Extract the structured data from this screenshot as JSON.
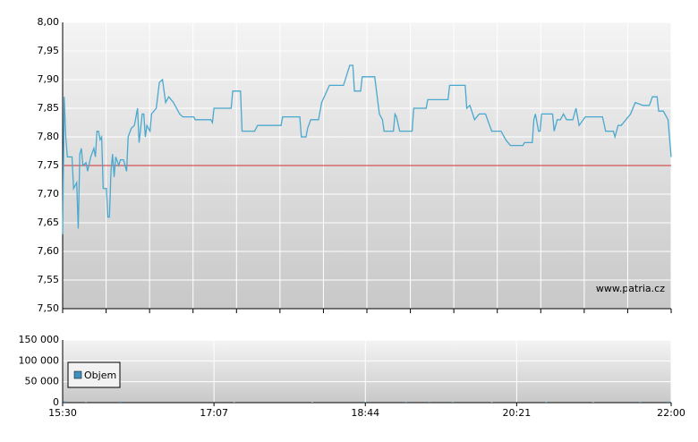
{
  "chart_data": [
    {
      "type": "line",
      "watermark": "www.patria.cz",
      "x": [
        "15:30",
        "15:31",
        "15:32",
        "15:33",
        "15:36",
        "15:37",
        "15:39",
        "15:40",
        "15:41",
        "15:42",
        "15:43",
        "15:45",
        "15:46",
        "15:48",
        "15:50",
        "15:51",
        "15:52",
        "15:53",
        "15:54",
        "15:55",
        "15:56",
        "15:58",
        "15:59",
        "16:00",
        "16:01",
        "16:02",
        "16:03",
        "16:04",
        "16:06",
        "16:07",
        "16:09",
        "16:11",
        "16:12",
        "16:14",
        "16:16",
        "16:18",
        "16:19",
        "16:21",
        "16:22",
        "16:23",
        "16:24",
        "16:26",
        "16:27",
        "16:30",
        "16:32",
        "16:34",
        "16:36",
        "16:38",
        "16:41",
        "16:45",
        "16:47",
        "16:54",
        "16:55",
        "17:05",
        "17:06",
        "17:07",
        "17:18",
        "17:19",
        "17:24",
        "17:25",
        "17:33",
        "17:35",
        "17:50",
        "17:51",
        "18:02",
        "18:03",
        "18:06",
        "18:07",
        "18:09",
        "18:14",
        "18:16",
        "18:21",
        "18:30",
        "18:34",
        "18:36",
        "18:37",
        "18:41",
        "18:42",
        "18:50",
        "18:53",
        "18:55",
        "18:56",
        "19:02",
        "19:03",
        "19:04",
        "19:06",
        "19:14",
        "19:15",
        "19:23",
        "19:24",
        "19:37",
        "19:38",
        "19:48",
        "19:49",
        "19:51",
        "19:54",
        "19:57",
        "20:01",
        "20:05",
        "20:11",
        "20:14",
        "20:17",
        "20:25",
        "20:26",
        "20:31",
        "20:32",
        "20:33",
        "20:35",
        "20:36",
        "20:37",
        "20:44",
        "20:45",
        "20:47",
        "20:49",
        "20:51",
        "20:53",
        "20:57",
        "20:59",
        "21:01",
        "21:05",
        "21:16",
        "21:18",
        "21:23",
        "21:24",
        "21:26",
        "21:28",
        "21:31",
        "21:34",
        "21:37",
        "21:42",
        "21:46",
        "21:48",
        "21:51",
        "21:52",
        "21:55",
        "21:58",
        "22:00"
      ],
      "series": [
        {
          "color": "#4aa8cf",
          "values": [
            7.63,
            7.87,
            7.8,
            7.765,
            7.765,
            7.71,
            7.72,
            7.64,
            7.77,
            7.78,
            7.75,
            7.755,
            7.74,
            7.765,
            7.78,
            7.765,
            7.81,
            7.81,
            7.795,
            7.8,
            7.71,
            7.71,
            7.66,
            7.66,
            7.74,
            7.77,
            7.73,
            7.765,
            7.75,
            7.76,
            7.76,
            7.74,
            7.8,
            7.815,
            7.82,
            7.85,
            7.79,
            7.84,
            7.84,
            7.8,
            7.82,
            7.81,
            7.84,
            7.85,
            7.895,
            7.9,
            7.86,
            7.87,
            7.86,
            7.84,
            7.835,
            7.835,
            7.83,
            7.83,
            7.825,
            7.85,
            7.85,
            7.88,
            7.88,
            7.81,
            7.81,
            7.82,
            7.82,
            7.835,
            7.835,
            7.8,
            7.8,
            7.815,
            7.83,
            7.83,
            7.86,
            7.89,
            7.89,
            7.925,
            7.925,
            7.88,
            7.88,
            7.905,
            7.905,
            7.84,
            7.83,
            7.81,
            7.81,
            7.84,
            7.835,
            7.81,
            7.81,
            7.85,
            7.85,
            7.865,
            7.865,
            7.89,
            7.89,
            7.85,
            7.855,
            7.83,
            7.84,
            7.84,
            7.81,
            7.81,
            7.795,
            7.785,
            7.785,
            7.79,
            7.79,
            7.83,
            7.84,
            7.81,
            7.81,
            7.84,
            7.84,
            7.81,
            7.83,
            7.83,
            7.84,
            7.83,
            7.83,
            7.85,
            7.82,
            7.835,
            7.835,
            7.81,
            7.81,
            7.8,
            7.82,
            7.82,
            7.83,
            7.84,
            7.86,
            7.855,
            7.855,
            7.87,
            7.87,
            7.845,
            7.845,
            7.83,
            7.765
          ]
        }
      ],
      "reference_line": {
        "value": 7.75,
        "color": "#d03030"
      },
      "ylim": [
        7.5,
        8.0
      ],
      "yticks": [
        {
          "value": 7.5,
          "label": "7,50"
        },
        {
          "value": 7.55,
          "label": "7,55"
        },
        {
          "value": 7.6,
          "label": "7,60"
        },
        {
          "value": 7.65,
          "label": "7,65"
        },
        {
          "value": 7.7,
          "label": "7,70"
        },
        {
          "value": 7.75,
          "label": "7,75"
        },
        {
          "value": 7.8,
          "label": "7,80"
        },
        {
          "value": 7.85,
          "label": "7,85"
        },
        {
          "value": 7.9,
          "label": "7,90"
        },
        {
          "value": 7.95,
          "label": "7,95"
        },
        {
          "value": 8.0,
          "label": "8,00"
        }
      ],
      "xlim": [
        "15:30",
        "22:00"
      ],
      "grid": true
    },
    {
      "type": "bar",
      "x": [
        "15:31",
        "15:45",
        "16:07",
        "17:20",
        "18:10",
        "18:44",
        "19:10",
        "19:25",
        "19:40",
        "20:05",
        "20:40",
        "21:10",
        "21:40",
        "21:58"
      ],
      "series": [
        {
          "name": "Objem",
          "color": "#3f8fc0",
          "values": [
            3000,
            1500,
            2500,
            1200,
            1000,
            1500,
            1800,
            2000,
            1500,
            1200,
            1500,
            1000,
            1800,
            2500
          ]
        }
      ],
      "ylim": [
        0,
        150000
      ],
      "yticks": [
        0,
        {
          "value": 50000,
          "label": "50 000"
        },
        {
          "value": 100000,
          "label": "100 000"
        },
        {
          "value": 150000,
          "label": "150 000"
        }
      ],
      "xlim": [
        "15:30",
        "22:00"
      ],
      "xticks": [
        "15:30",
        "17:07",
        "18:44",
        "20:21",
        "22:00"
      ],
      "grid": true,
      "legend": "upper-left"
    }
  ]
}
